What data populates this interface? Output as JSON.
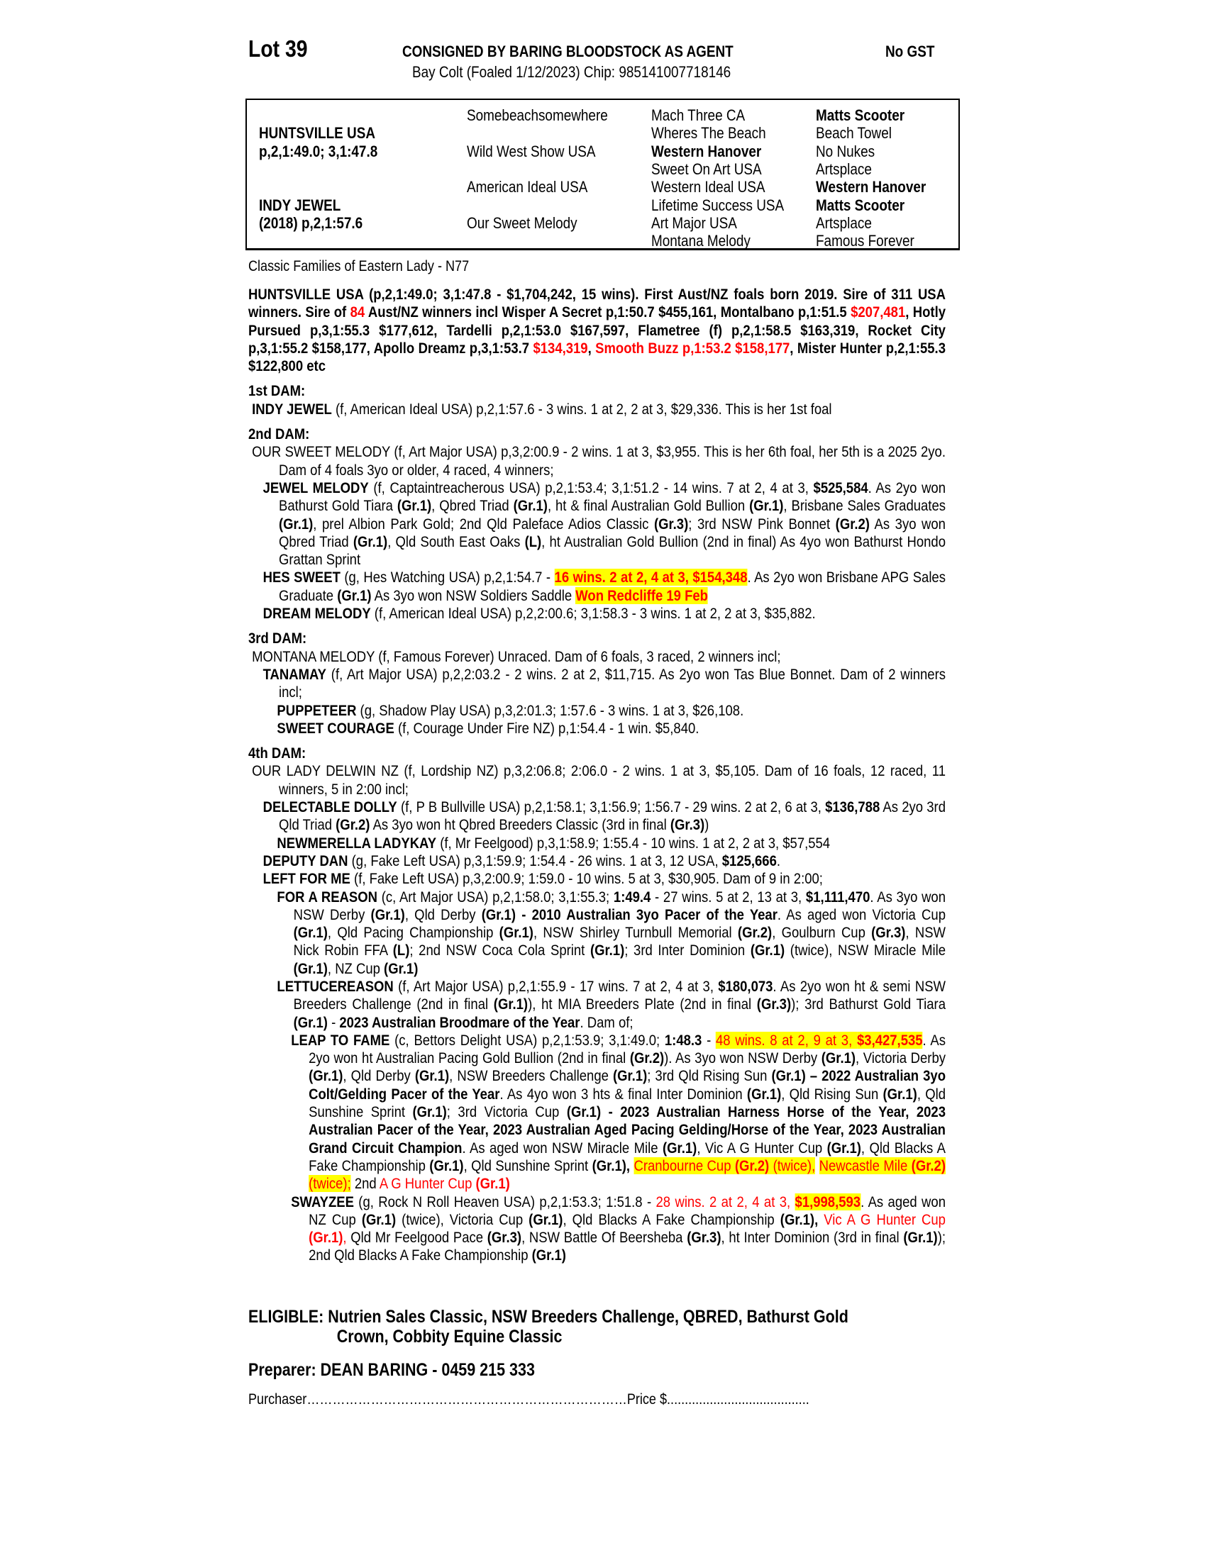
{
  "header": {
    "lot": "Lot 39",
    "consignor": "CONSIGNED BY BARING BLOODSTOCK AS AGENT",
    "gst": "No GST",
    "description": "Bay Colt (Foaled 1/12/2023) Chip: 985141007718146"
  },
  "pedigree": {
    "sire_name": "HUNTSVILLE USA",
    "sire_record": "p,2,1:49.0; 3,1:47.8",
    "dam_name": "INDY JEWEL",
    "dam_record": "(2018) p,2,1:57.6",
    "gen2": [
      "Somebeachsomewhere",
      "Wild West Show USA",
      "American Ideal USA",
      "Our Sweet Melody"
    ],
    "gen3": [
      {
        "t": "Mach Three CA",
        "b": false
      },
      {
        "t": "Wheres The Beach",
        "b": false
      },
      {
        "t": "Western Hanover",
        "b": true
      },
      {
        "t": "Sweet On Art USA",
        "b": false
      },
      {
        "t": "Western Ideal USA",
        "b": false
      },
      {
        "t": "Lifetime Success USA",
        "b": false
      },
      {
        "t": "Art Major USA",
        "b": false
      },
      {
        "t": "Montana Melody",
        "b": false
      }
    ],
    "gen4": [
      {
        "t": "Matts Scooter",
        "b": true
      },
      {
        "t": "Beach Towel",
        "b": false
      },
      {
        "t": "No Nukes",
        "b": false
      },
      {
        "t": "Artsplace",
        "b": false
      },
      {
        "t": "Western Hanover",
        "b": true
      },
      {
        "t": "Matts Scooter",
        "b": true
      },
      {
        "t": "Artsplace",
        "b": false
      },
      {
        "t": "Famous Forever",
        "b": false
      }
    ]
  },
  "family": "Classic Families of Eastern Lady - N77",
  "colors": {
    "red": "#ff0000",
    "highlight": "#ffff00"
  },
  "paragraphs": [
    {
      "cls": "sire",
      "segs": [
        {
          "t": "HUNTSVILLE USA (p,2,1:49.0; 3,1:47.8 - $1,704,242, 15 wins).  First Aust/NZ foals born 2019. Sire of 311 USA winners. Sire of ",
          "s": "b"
        },
        {
          "t": "84",
          "s": "rb"
        },
        {
          "t": " Aust/NZ winners incl Wisper A Secret p,1:50.7 $455,161, Montalbano p,1:51.5 ",
          "s": "b"
        },
        {
          "t": "$207,481",
          "s": "rb"
        },
        {
          "t": ", Hotly Pursued p,3,1:55.3 $177,612, Tardelli p,2,1:53.0 $167,597, Flametree (f) p,2,1:58.5 $163,319, Rocket City p,3,1:55.2 $158,177, Apollo Dreamz p,3,1:53.7 ",
          "s": "b"
        },
        {
          "t": "$134,319",
          "s": "rb"
        },
        {
          "t": ", ",
          "s": "b"
        },
        {
          "t": "Smooth Buzz p,1:53.2 $158,177",
          "s": "rb"
        },
        {
          "t": ", Mister Hunter p,2,1:55.3 $122,800 etc",
          "s": "b"
        }
      ]
    },
    {
      "cls": "h",
      "top": true,
      "segs": [
        {
          "t": "1st DAM:",
          "s": "b"
        }
      ]
    },
    {
      "cls": "L0",
      "segs": [
        {
          "t": "INDY JEWEL",
          "s": "b"
        },
        {
          "t": " (f, American Ideal USA) p,2,1:57.6 - 3 wins. 1 at 2, 2 at 3, $29,336. This is her 1st foal",
          "s": "n"
        }
      ]
    },
    {
      "cls": "h",
      "segs": [
        {
          "t": "2nd DAM:",
          "s": "b"
        }
      ]
    },
    {
      "cls": "L0",
      "segs": [
        {
          "t": "OUR SWEET MELODY (f, Art Major USA) p,3,2:00.9 - 2 wins. 1 at 3, $3,955. This is her 6th foal, her 5th is a 2025 2yo. Dam of 4 foals 3yo or older, 4 raced, 4 winners;",
          "s": "n"
        }
      ]
    },
    {
      "cls": "L1",
      "segs": [
        {
          "t": "JEWEL MELODY",
          "s": "b"
        },
        {
          "t": " (f, Captaintreacherous USA) p,2,1:53.4; 3,1:51.2 - 14 wins. 7 at 2, 4 at 3, ",
          "s": "n"
        },
        {
          "t": "$525,584",
          "s": "b"
        },
        {
          "t": ". As 2yo won Bathurst Gold Tiara ",
          "s": "n"
        },
        {
          "t": "(Gr.1)",
          "s": "b"
        },
        {
          "t": ", Qbred Triad ",
          "s": "n"
        },
        {
          "t": "(Gr.1)",
          "s": "b"
        },
        {
          "t": ", ht & final Australian Gold Bullion ",
          "s": "n"
        },
        {
          "t": "(Gr.1)",
          "s": "b"
        },
        {
          "t": ", Brisbane Sales Graduates ",
          "s": "n"
        },
        {
          "t": "(Gr.1)",
          "s": "b"
        },
        {
          "t": ", prel Albion Park Gold; 2nd Qld Paleface Adios Classic ",
          "s": "n"
        },
        {
          "t": "(Gr.3)",
          "s": "b"
        },
        {
          "t": "; 3rd NSW Pink Bonnet ",
          "s": "n"
        },
        {
          "t": "(Gr.2)",
          "s": "b"
        },
        {
          "t": " As 3yo won Qbred Triad ",
          "s": "n"
        },
        {
          "t": "(Gr.1)",
          "s": "b"
        },
        {
          "t": ", Qld South East Oaks ",
          "s": "n"
        },
        {
          "t": "(L)",
          "s": "b"
        },
        {
          "t": ", ht Australian Gold Bullion (2nd in final) As 4yo won Bathurst Hondo Grattan Sprint",
          "s": "n"
        }
      ]
    },
    {
      "cls": "L1",
      "segs": [
        {
          "t": "HES SWEET",
          "s": "b"
        },
        {
          "t": " (g, Hes Watching USA) p,2,1:54.7 - ",
          "s": "n"
        },
        {
          "t": "16 wins. 2 at 2, 4 at 3, $154,348",
          "s": "hrb"
        },
        {
          "t": ". As 2yo won Brisbane APG Sales Graduate ",
          "s": "n"
        },
        {
          "t": "(Gr.1)",
          "s": "b"
        },
        {
          "t": " As 3yo won NSW Soldiers Saddle ",
          "s": "n"
        },
        {
          "t": "Won Redcliffe 19 Feb",
          "s": "hrb"
        }
      ]
    },
    {
      "cls": "L1",
      "segs": [
        {
          "t": "DREAM MELODY",
          "s": "b"
        },
        {
          "t": " (f, American Ideal USA) p,2,2:00.6; 3,1:58.3 - 3 wins. 1 at 2, 2 at 3, $35,882.",
          "s": "n"
        }
      ]
    },
    {
      "cls": "h",
      "segs": [
        {
          "t": "3rd DAM:",
          "s": "b"
        }
      ]
    },
    {
      "cls": "L0",
      "segs": [
        {
          "t": "MONTANA MELODY (f, Famous Forever) Unraced. Dam of 6 foals, 3 raced, 2 winners incl;",
          "s": "n"
        }
      ]
    },
    {
      "cls": "L1",
      "segs": [
        {
          "t": "TANAMAY",
          "s": "b"
        },
        {
          "t": " (f, Art Major USA) p,2,2:03.2 - 2 wins. 2 at 2, $11,715. As 2yo won Tas Blue Bonnet. Dam of 2 winners incl;",
          "s": "n"
        }
      ]
    },
    {
      "cls": "L2",
      "segs": [
        {
          "t": "PUPPETEER",
          "s": "b"
        },
        {
          "t": " (g, Shadow Play USA) p,3,2:01.3; 1:57.6 - 3 wins. 1 at 3, $26,108.",
          "s": "n"
        }
      ]
    },
    {
      "cls": "L2",
      "segs": [
        {
          "t": "SWEET COURAGE",
          "s": "b"
        },
        {
          "t": " (f, Courage Under Fire NZ) p,1:54.4 - 1 win. $5,840.",
          "s": "n"
        }
      ]
    },
    {
      "cls": "h",
      "segs": [
        {
          "t": "4th DAM:",
          "s": "b"
        }
      ]
    },
    {
      "cls": "L0",
      "segs": [
        {
          "t": "OUR LADY DELWIN NZ (f, Lordship NZ) p,3,2:06.8; 2:06.0 - 2 wins. 1 at 3, $5,105. Dam of 16 foals, 12 raced, 11 winners, 5 in 2:00 incl;",
          "s": "n"
        }
      ]
    },
    {
      "cls": "L1",
      "segs": [
        {
          "t": "DELECTABLE DOLLY",
          "s": "b"
        },
        {
          "t": " (f, P B Bullville USA) p,2,1:58.1; 3,1:56.9; 1:56.7 - 29 wins. 2 at 2, 6 at 3, ",
          "s": "n"
        },
        {
          "t": "$136,788",
          "s": "b"
        },
        {
          "t": " As 2yo 3rd Qld Triad ",
          "s": "n"
        },
        {
          "t": "(Gr.2)",
          "s": "b"
        },
        {
          "t": " As 3yo won ht Qbred Breeders Classic (3rd in final ",
          "s": "n"
        },
        {
          "t": "(Gr.3)",
          "s": "b"
        },
        {
          "t": ")",
          "s": "n"
        }
      ]
    },
    {
      "cls": "L2",
      "segs": [
        {
          "t": "NEWMERELLA LADYKAY",
          "s": "b"
        },
        {
          "t": " (f, Mr Feelgood) p,3,1:58.9; 1:55.4 - 10 wins. 1 at 2, 2 at 3, $57,554",
          "s": "n"
        }
      ]
    },
    {
      "cls": "L1",
      "segs": [
        {
          "t": "DEPUTY DAN",
          "s": "b"
        },
        {
          "t": " (g, Fake Left USA) p,3,1:59.9; 1:54.4 - 26 wins. 1 at 3, 12 USA, ",
          "s": "n"
        },
        {
          "t": "$125,666",
          "s": "b"
        },
        {
          "t": ".",
          "s": "n"
        }
      ]
    },
    {
      "cls": "L1",
      "segs": [
        {
          "t": "LEFT FOR ME",
          "s": "b"
        },
        {
          "t": " (f, Fake Left USA) p,3,2:00.9; 1:59.0 - 10 wins. 5 at 3, $30,905. Dam of 9 in 2:00;",
          "s": "n"
        }
      ]
    },
    {
      "cls": "L2",
      "segs": [
        {
          "t": "FOR A REASON",
          "s": "b"
        },
        {
          "t": " (c, Art Major USA) p,2,1:58.0; 3,1:55.3; ",
          "s": "n"
        },
        {
          "t": "1:49.4",
          "s": "b"
        },
        {
          "t": " - 27 wins. 5 at 2, 13 at 3, ",
          "s": "n"
        },
        {
          "t": "$1,111,470",
          "s": "b"
        },
        {
          "t": ". As 3yo won NSW Derby ",
          "s": "n"
        },
        {
          "t": "(Gr.1)",
          "s": "b"
        },
        {
          "t": ", Qld Derby ",
          "s": "n"
        },
        {
          "t": "(Gr.1) - 2010 Australian 3yo Pacer of the Year",
          "s": "b"
        },
        {
          "t": ". As aged won Victoria Cup ",
          "s": "n"
        },
        {
          "t": "(Gr.1)",
          "s": "b"
        },
        {
          "t": ", Qld Pacing Championship ",
          "s": "n"
        },
        {
          "t": "(Gr.1)",
          "s": "b"
        },
        {
          "t": ", NSW Shirley Turnbull Memorial ",
          "s": "n"
        },
        {
          "t": "(Gr.2)",
          "s": "b"
        },
        {
          "t": ", Goulburn Cup ",
          "s": "n"
        },
        {
          "t": "(Gr.3)",
          "s": "b"
        },
        {
          "t": ", NSW Nick Robin FFA ",
          "s": "n"
        },
        {
          "t": "(L)",
          "s": "b"
        },
        {
          "t": "; 2nd NSW Coca Cola Sprint ",
          "s": "n"
        },
        {
          "t": "(Gr.1)",
          "s": "b"
        },
        {
          "t": "; 3rd Inter Dominion ",
          "s": "n"
        },
        {
          "t": "(Gr.1)",
          "s": "b"
        },
        {
          "t": " (twice), NSW Miracle Mile ",
          "s": "n"
        },
        {
          "t": "(Gr.1)",
          "s": "b"
        },
        {
          "t": ", NZ Cup ",
          "s": "n"
        },
        {
          "t": "(Gr.1)",
          "s": "b"
        }
      ]
    },
    {
      "cls": "L2",
      "segs": [
        {
          "t": "LETTUCEREASON",
          "s": "b"
        },
        {
          "t": " (f, Art Major USA) p,2,1:55.9 - 17 wins. 7 at 2, 4 at 3, ",
          "s": "n"
        },
        {
          "t": "$180,073",
          "s": "b"
        },
        {
          "t": ". As 2yo won ht & semi NSW Breeders Challenge (2nd in final ",
          "s": "n"
        },
        {
          "t": "(Gr.1)",
          "s": "b"
        },
        {
          "t": "), ht MIA Breeders Plate (2nd in final ",
          "s": "n"
        },
        {
          "t": "(Gr.3)",
          "s": "b"
        },
        {
          "t": "); 3rd Bathurst Gold Tiara ",
          "s": "n"
        },
        {
          "t": "(Gr.1)",
          "s": "b"
        },
        {
          "t": " - ",
          "s": "n"
        },
        {
          "t": "2023 Australian Broodmare of the Year",
          "s": "b"
        },
        {
          "t": ". Dam of;",
          "s": "n"
        }
      ]
    },
    {
      "cls": "L3",
      "segs": [
        {
          "t": "LEAP TO FAME",
          "s": "b"
        },
        {
          "t": " (c, Bettors Delight USA) p,2,1:53.9; 3,1:49.0; ",
          "s": "n"
        },
        {
          "t": "1:48.3",
          "s": "b"
        },
        {
          "t": " - ",
          "s": "n"
        },
        {
          "t": "48 wins. 8 at 2, 9 at 3, ",
          "s": "hr"
        },
        {
          "t": "$3,427,535",
          "s": "hrb"
        },
        {
          "t": ". As 2yo won ht Australian Pacing Gold Bullion (2nd in final ",
          "s": "n"
        },
        {
          "t": "(Gr.2)",
          "s": "b"
        },
        {
          "t": "). As 3yo won NSW Derby ",
          "s": "n"
        },
        {
          "t": "(Gr.1)",
          "s": "b"
        },
        {
          "t": ", Victoria Derby ",
          "s": "n"
        },
        {
          "t": "(Gr.1)",
          "s": "b"
        },
        {
          "t": ", Qld Derby ",
          "s": "n"
        },
        {
          "t": "(Gr.1)",
          "s": "b"
        },
        {
          "t": ", NSW Breeders Challenge ",
          "s": "n"
        },
        {
          "t": "(Gr.1)",
          "s": "b"
        },
        {
          "t": "; 3rd Qld Rising Sun ",
          "s": "n"
        },
        {
          "t": "(Gr.1) – 2022 Australian 3yo Colt/Gelding Pacer of the Year",
          "s": "b"
        },
        {
          "t": ". As 4yo won 3 hts & final Inter Dominion ",
          "s": "n"
        },
        {
          "t": "(Gr.1)",
          "s": "b"
        },
        {
          "t": ", Qld Rising Sun ",
          "s": "n"
        },
        {
          "t": "(Gr.1)",
          "s": "b"
        },
        {
          "t": ", Qld Sunshine Sprint ",
          "s": "n"
        },
        {
          "t": "(Gr.1)",
          "s": "b"
        },
        {
          "t": "; 3rd Victoria Cup ",
          "s": "n"
        },
        {
          "t": "(Gr.1) - 2023 Australian Harness Horse of the Year, 2023 Australian Pacer of the Year, 2023 Australian Aged Pacing Gelding/Horse of the Year, 2023 Australian Grand Circuit Champion",
          "s": "b"
        },
        {
          "t": ". As aged won NSW Miracle Mile ",
          "s": "n"
        },
        {
          "t": "(Gr.1)",
          "s": "b"
        },
        {
          "t": ", Vic A G Hunter Cup ",
          "s": "n"
        },
        {
          "t": "(Gr.1)",
          "s": "b"
        },
        {
          "t": ", Qld Blacks A Fake Championship ",
          "s": "n"
        },
        {
          "t": "(Gr.1)",
          "s": "b"
        },
        {
          "t": ", Qld Sunshine Sprint ",
          "s": "n"
        },
        {
          "t": "(Gr.1),",
          "s": "b"
        },
        {
          "t": " ",
          "s": "n"
        },
        {
          "t": "Cranbourne Cup ",
          "s": "hr"
        },
        {
          "t": "(Gr.2)",
          "s": "hrb"
        },
        {
          "t": " (twice),",
          "s": "hr"
        },
        {
          "t": " ",
          "s": "n"
        },
        {
          "t": "Newcastle Mile ",
          "s": "hr"
        },
        {
          "t": "(Gr.2)",
          "s": "hrb"
        },
        {
          "t": " (twice);",
          "s": "hr"
        },
        {
          "t": " 2nd ",
          "s": "n"
        },
        {
          "t": "A G Hunter Cup ",
          "s": "r"
        },
        {
          "t": "(Gr.1)",
          "s": "rb"
        }
      ]
    },
    {
      "cls": "L3",
      "segs": [
        {
          "t": "SWAYZEE",
          "s": "b"
        },
        {
          "t": " (g, Rock N Roll Heaven USA) p,2,1:53.3; 1:51.8 - ",
          "s": "n"
        },
        {
          "t": "28 wins. 2 at 2, 4 at 3, ",
          "s": "r"
        },
        {
          "t": "$1,998,593",
          "s": "hrb"
        },
        {
          "t": ". As aged won NZ Cup ",
          "s": "n"
        },
        {
          "t": "(Gr.1)",
          "s": "b"
        },
        {
          "t": " (twice), Victoria Cup ",
          "s": "n"
        },
        {
          "t": "(Gr.1)",
          "s": "b"
        },
        {
          "t": ", Qld Blacks A Fake Championship ",
          "s": "n"
        },
        {
          "t": "(Gr.1),",
          "s": "b"
        },
        {
          "t": " ",
          "s": "n"
        },
        {
          "t": "Vic A G Hunter Cup ",
          "s": "r"
        },
        {
          "t": "(Gr.1)",
          "s": "rb"
        },
        {
          "t": ",",
          "s": "r"
        },
        {
          "t": " Qld Mr Feelgood Pace ",
          "s": "n"
        },
        {
          "t": "(Gr.3)",
          "s": "b"
        },
        {
          "t": ", NSW Battle Of Beersheba ",
          "s": "n"
        },
        {
          "t": "(Gr.3)",
          "s": "b"
        },
        {
          "t": ", ht Inter Dominion (3rd in final ",
          "s": "n"
        },
        {
          "t": "(Gr.1)",
          "s": "b"
        },
        {
          "t": "); 2nd Qld Blacks A Fake Championship ",
          "s": "n"
        },
        {
          "t": "(Gr.1)",
          "s": "b"
        }
      ]
    }
  ],
  "eligible": {
    "line1": "ELIGIBLE: Nutrien Sales Classic, NSW Breeders Challenge, QBRED, Bathurst Gold",
    "line2": "Crown, Cobbity Equine Classic"
  },
  "preparer": "Preparer: DEAN BARING - 0459 215 333",
  "purchaser": {
    "label": "Purchaser",
    "dots": "…………………………………………………………………",
    "price_label": "Price $",
    "price_dots": "........................................"
  }
}
